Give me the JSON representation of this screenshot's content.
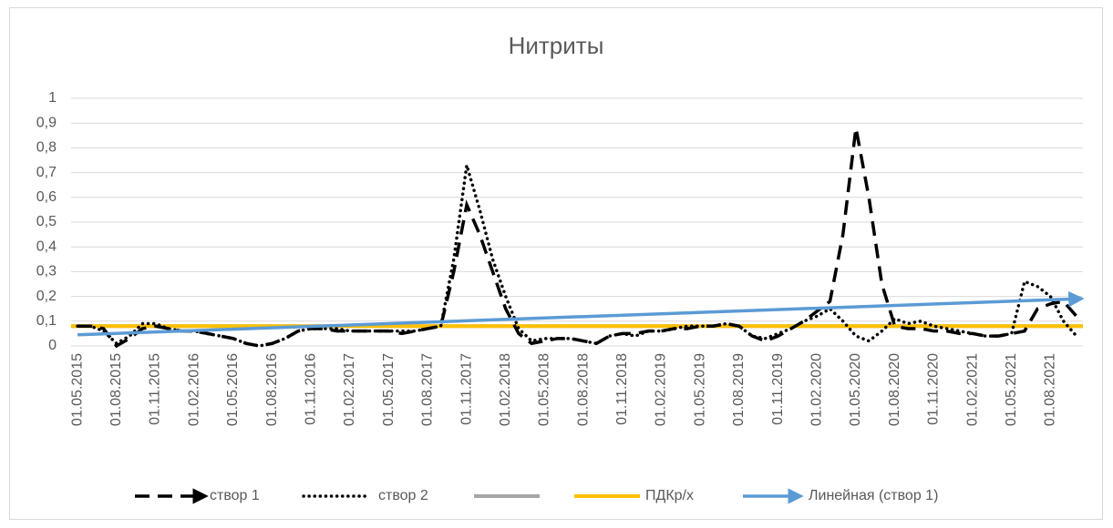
{
  "chart_data": {
    "type": "line",
    "title": "Нитриты",
    "categories": [
      "01.05.2015",
      null,
      null,
      "01.08.2015",
      null,
      null,
      "01.11.2015",
      null,
      null,
      "01.02.2016",
      null,
      null,
      "01.05.2016",
      null,
      null,
      "01.08.2016",
      null,
      null,
      "01.11.2016",
      null,
      null,
      "01.02.2017",
      null,
      null,
      "01.05.2017",
      null,
      null,
      "01.08.2017",
      null,
      null,
      "01.11.2017",
      null,
      null,
      "01.02.2018",
      null,
      null,
      "01.05.2018",
      null,
      null,
      "01.08.2018",
      null,
      null,
      "01.11.2018",
      null,
      null,
      "01.02.2019",
      null,
      null,
      "01.05.2019",
      null,
      null,
      "01.08.2019",
      null,
      null,
      "01.11.2019",
      null,
      null,
      "01.02.2020",
      null,
      null,
      "01.05.2020",
      null,
      null,
      "01.08.2020",
      null,
      null,
      "01.11.2020",
      null,
      null,
      "01.02.2021",
      null,
      null,
      "01.05.2021",
      null,
      null,
      "01.08.2021",
      null,
      null
    ],
    "series": [
      {
        "name": "створ 1",
        "color": "#000000",
        "style": "dash",
        "values": [
          0.08,
          0.08,
          0.07,
          0.0,
          0.03,
          0.07,
          0.08,
          0.07,
          0.06,
          0.06,
          0.05,
          0.04,
          0.03,
          0.01,
          0.0,
          0.01,
          0.03,
          0.06,
          0.07,
          0.07,
          0.06,
          0.06,
          0.06,
          0.06,
          0.06,
          0.05,
          0.06,
          0.07,
          0.08,
          0.3,
          0.57,
          0.45,
          0.3,
          0.15,
          0.05,
          0.01,
          0.02,
          0.03,
          0.03,
          0.02,
          0.01,
          0.04,
          0.05,
          0.05,
          0.06,
          0.06,
          0.07,
          0.07,
          0.08,
          0.08,
          0.09,
          0.08,
          0.04,
          0.02,
          0.04,
          0.07,
          0.1,
          0.14,
          0.18,
          0.45,
          0.88,
          0.6,
          0.25,
          0.08,
          0.07,
          0.07,
          0.06,
          0.06,
          0.05,
          0.05,
          0.04,
          0.04,
          0.05,
          0.06,
          0.15,
          0.17,
          0.18,
          0.12
        ]
      },
      {
        "name": "створ 2",
        "color": "#000000",
        "style": "dot",
        "values": [
          0.08,
          0.08,
          0.06,
          0.01,
          0.04,
          0.09,
          0.09,
          0.07,
          0.06,
          0.06,
          0.05,
          0.04,
          0.03,
          0.01,
          0.0,
          0.01,
          0.03,
          0.06,
          0.07,
          0.07,
          0.07,
          0.06,
          0.06,
          0.06,
          0.06,
          0.06,
          0.06,
          0.07,
          0.08,
          0.35,
          0.73,
          0.55,
          0.35,
          0.2,
          0.07,
          0.02,
          0.03,
          0.03,
          0.03,
          0.02,
          0.01,
          0.04,
          0.05,
          0.04,
          0.06,
          0.06,
          0.07,
          0.08,
          0.08,
          0.08,
          0.09,
          0.08,
          0.04,
          0.03,
          0.05,
          0.07,
          0.1,
          0.12,
          0.15,
          0.1,
          0.04,
          0.02,
          0.06,
          0.11,
          0.09,
          0.1,
          0.08,
          0.07,
          0.06,
          0.05,
          0.04,
          0.04,
          0.05,
          0.26,
          0.24,
          0.2,
          0.1,
          0.04
        ]
      }
    ],
    "reference_lines": [
      {
        "color": "#a5a5a5",
        "value": 0.08
      },
      {
        "name": "ПДКр/х",
        "color": "#ffc000",
        "value": 0.08
      }
    ],
    "trend": {
      "name": "Линейная (створ 1)",
      "color": "#5b9bd5",
      "start": 0.045,
      "end": 0.19
    },
    "ylim": [
      0,
      1
    ],
    "yticks": [
      0,
      {
        "value": 0.1,
        "label": "0,1"
      },
      {
        "value": 0.2,
        "label": "0,2"
      },
      {
        "value": 0.3,
        "label": "0,3"
      },
      {
        "value": 0.4,
        "label": "0,4"
      },
      {
        "value": 0.5,
        "label": "0,5"
      },
      {
        "value": 0.6,
        "label": "0,6"
      },
      {
        "value": 0.7,
        "label": "0,7"
      },
      {
        "value": 0.8,
        "label": "0,8"
      },
      {
        "value": 0.9,
        "label": "0,9"
      },
      1
    ],
    "grid": true,
    "legend": "bottom"
  }
}
